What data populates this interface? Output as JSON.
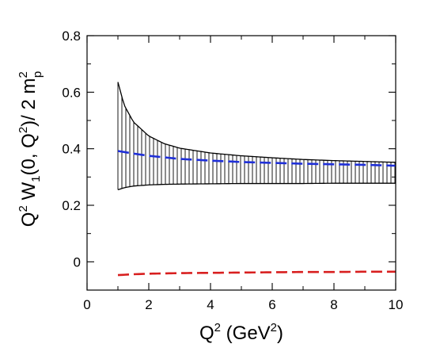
{
  "chart_data": {
    "type": "line",
    "title": "",
    "xlabel": "Q^2 (GeV^2)",
    "ylabel": "Q^2 W_1(0, Q^2)/ 2 m_p^2",
    "xlim": [
      0,
      10
    ],
    "ylim": [
      -0.1,
      0.8
    ],
    "x_ticks": [
      0,
      2,
      4,
      6,
      8,
      10
    ],
    "x_tick_labels": [
      "0",
      "2",
      "4",
      "6",
      "8",
      "10"
    ],
    "y_ticks": [
      0,
      0.2,
      0.4,
      0.6,
      0.8
    ],
    "y_tick_labels": [
      "0",
      "0.2",
      "0.4",
      "0.6",
      "0.8"
    ],
    "grid": false,
    "legend": "none",
    "band": {
      "style": "vertical-hatch",
      "color": "#000000",
      "x": [
        1.0,
        1.2,
        1.5,
        2.0,
        2.5,
        3.0,
        4.0,
        5.0,
        6.0,
        7.0,
        8.0,
        9.0,
        10.0
      ],
      "upper": [
        0.636,
        0.555,
        0.495,
        0.445,
        0.418,
        0.402,
        0.385,
        0.375,
        0.368,
        0.362,
        0.358,
        0.355,
        0.352
      ],
      "lower": [
        0.255,
        0.262,
        0.268,
        0.272,
        0.274,
        0.275,
        0.276,
        0.277,
        0.277,
        0.277,
        0.278,
        0.278,
        0.278
      ]
    },
    "series": [
      {
        "style": "dashed",
        "color": "#1f2fd8",
        "x": [
          1.0,
          1.5,
          2.0,
          3.0,
          4.0,
          5.0,
          6.0,
          7.0,
          8.0,
          9.0,
          10.0
        ],
        "values": [
          0.392,
          0.383,
          0.375,
          0.364,
          0.358,
          0.353,
          0.35,
          0.347,
          0.345,
          0.343,
          0.34
        ]
      },
      {
        "style": "dashed",
        "color": "#d81f1f",
        "x": [
          1.0,
          1.5,
          2.0,
          3.0,
          4.0,
          5.0,
          6.0,
          7.0,
          8.0,
          9.0,
          10.0
        ],
        "values": [
          -0.047,
          -0.044,
          -0.042,
          -0.04,
          -0.039,
          -0.038,
          -0.037,
          -0.036,
          -0.036,
          -0.035,
          -0.035
        ]
      }
    ]
  }
}
